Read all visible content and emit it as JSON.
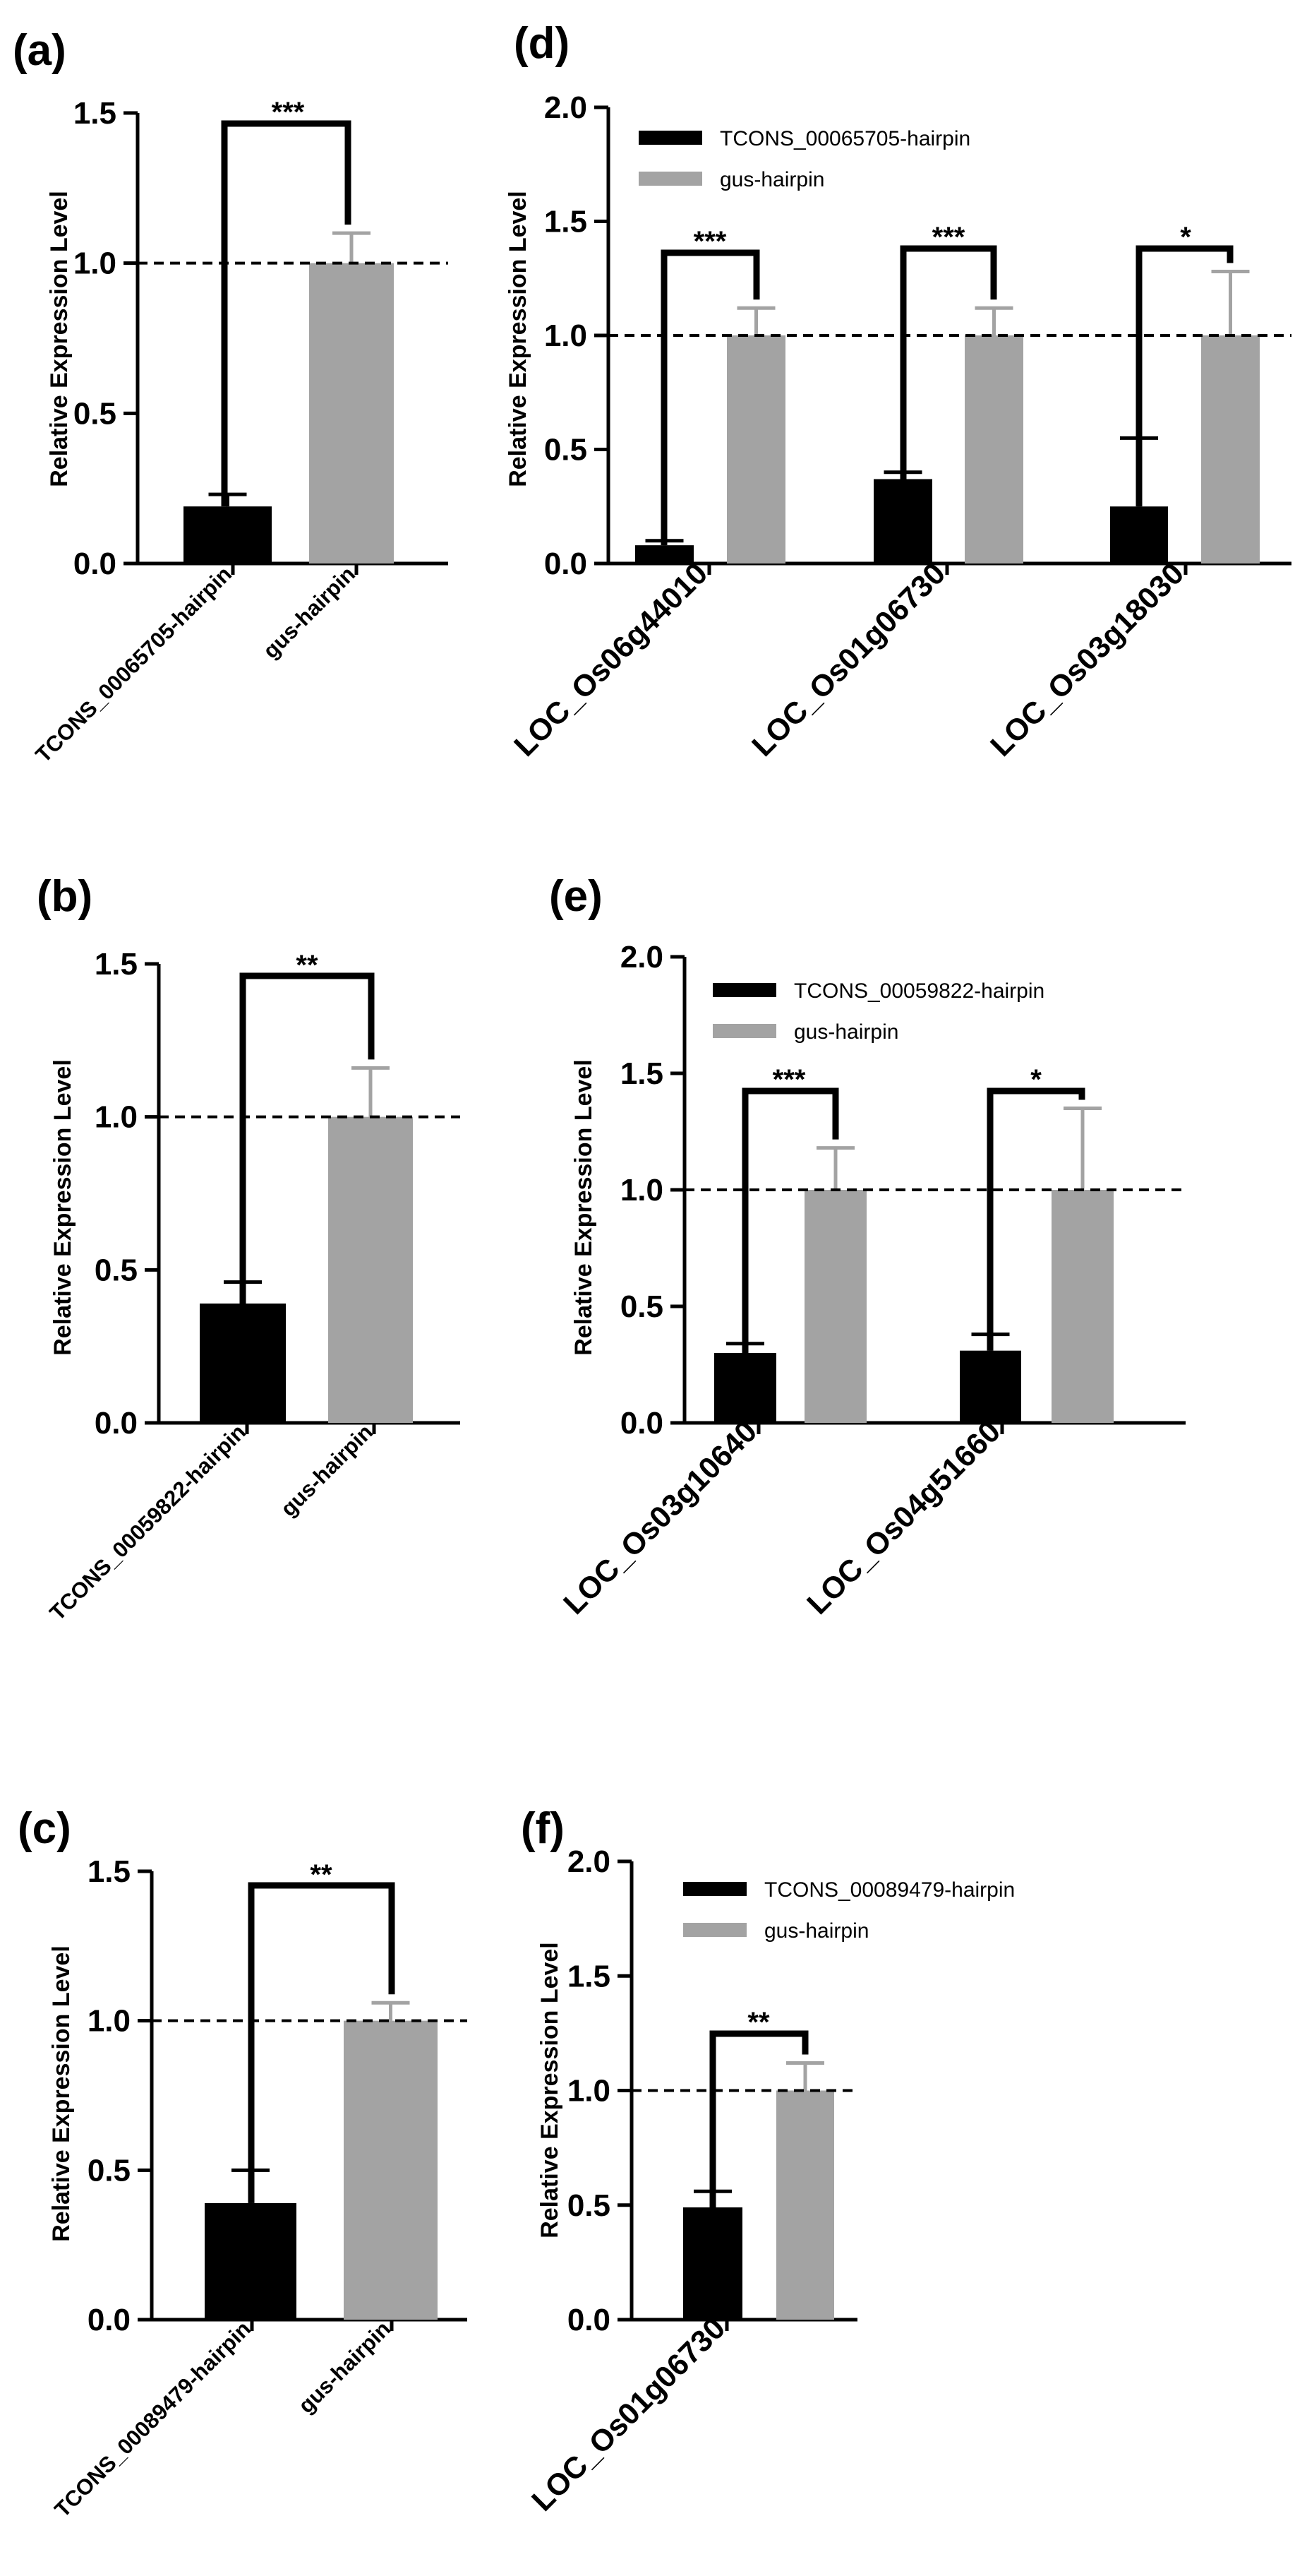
{
  "chart_data": [
    {
      "panel": "(a)",
      "type": "bar",
      "ylabel": "Relative Expression Level",
      "ylim": [
        0,
        1.5
      ],
      "yticks": [
        "0.0",
        "0.5",
        "1.0",
        "1.5"
      ],
      "reference_line": 1.0,
      "categories": [
        "TCONS_00065705-hairpin",
        "gus-hairpin"
      ],
      "values": [
        0.19,
        1.0
      ],
      "errors": [
        0.04,
        0.1
      ],
      "colors": [
        "#000000",
        "#a3a3a3"
      ],
      "significance": [
        "***"
      ]
    },
    {
      "panel": "(b)",
      "type": "bar",
      "ylabel": "Relative Expression Level",
      "ylim": [
        0,
        1.5
      ],
      "yticks": [
        "0.0",
        "0.5",
        "1.0",
        "1.5"
      ],
      "reference_line": 1.0,
      "categories": [
        "TCONS_00059822-hairpin",
        "gus-hairpin"
      ],
      "values": [
        0.39,
        1.0
      ],
      "errors": [
        0.07,
        0.16
      ],
      "colors": [
        "#000000",
        "#a3a3a3"
      ],
      "significance": [
        "**"
      ]
    },
    {
      "panel": "(c)",
      "type": "bar",
      "ylabel": "Relative Expression Level",
      "ylim": [
        0,
        1.5
      ],
      "yticks": [
        "0.0",
        "0.5",
        "1.0",
        "1.5"
      ],
      "reference_line": 1.0,
      "categories": [
        "TCONS_00089479-hairpin",
        "gus-hairpin"
      ],
      "values": [
        0.39,
        1.0
      ],
      "errors": [
        0.11,
        0.06
      ],
      "colors": [
        "#000000",
        "#a3a3a3"
      ],
      "significance": [
        "**"
      ]
    },
    {
      "panel": "(d)",
      "type": "bar",
      "ylabel": "Relative Expression Level",
      "ylim": [
        0,
        2.0
      ],
      "yticks": [
        "0.0",
        "0.5",
        "1.0",
        "1.5",
        "2.0"
      ],
      "reference_line": 1.0,
      "categories": [
        "LOC_Os06g44010",
        "LOC_Os01g06730",
        "LOC_Os03g18030"
      ],
      "series": [
        {
          "name": "TCONS_00065705-hairpin",
          "color": "#000000",
          "values": [
            0.08,
            0.37,
            0.25
          ],
          "errors": [
            0.02,
            0.03,
            0.3
          ]
        },
        {
          "name": "gus-hairpin",
          "color": "#a3a3a3",
          "values": [
            1.0,
            1.0,
            1.0
          ],
          "errors": [
            0.12,
            0.12,
            0.28
          ]
        }
      ],
      "significance": [
        "***",
        "***",
        "*"
      ]
    },
    {
      "panel": "(e)",
      "type": "bar",
      "ylabel": "Relative Expression Level",
      "ylim": [
        0,
        2.0
      ],
      "yticks": [
        "0.0",
        "0.5",
        "1.0",
        "1.5",
        "2.0"
      ],
      "reference_line": 1.0,
      "categories": [
        "LOC_Os03g10640",
        "LOC_Os04g51660"
      ],
      "series": [
        {
          "name": "TCONS_00059822-hairpin",
          "color": "#000000",
          "values": [
            0.3,
            0.31
          ],
          "errors": [
            0.04,
            0.07
          ]
        },
        {
          "name": "gus-hairpin",
          "color": "#a3a3a3",
          "values": [
            1.0,
            1.0
          ],
          "errors": [
            0.18,
            0.35
          ]
        }
      ],
      "significance": [
        "***",
        "*"
      ]
    },
    {
      "panel": "(f)",
      "type": "bar",
      "ylabel": "Relative Expression Level",
      "ylim": [
        0,
        2.0
      ],
      "yticks": [
        "0.0",
        "0.5",
        "1.0",
        "1.5",
        "2.0"
      ],
      "reference_line": 1.0,
      "categories": [
        "LOC_Os01g06730"
      ],
      "series": [
        {
          "name": "TCONS_00089479-hairpin",
          "color": "#000000",
          "values": [
            0.49
          ],
          "errors": [
            0.07
          ]
        },
        {
          "name": "gus-hairpin",
          "color": "#a3a3a3",
          "values": [
            1.0
          ],
          "errors": [
            0.12
          ]
        }
      ],
      "significance": [
        "**"
      ]
    }
  ]
}
